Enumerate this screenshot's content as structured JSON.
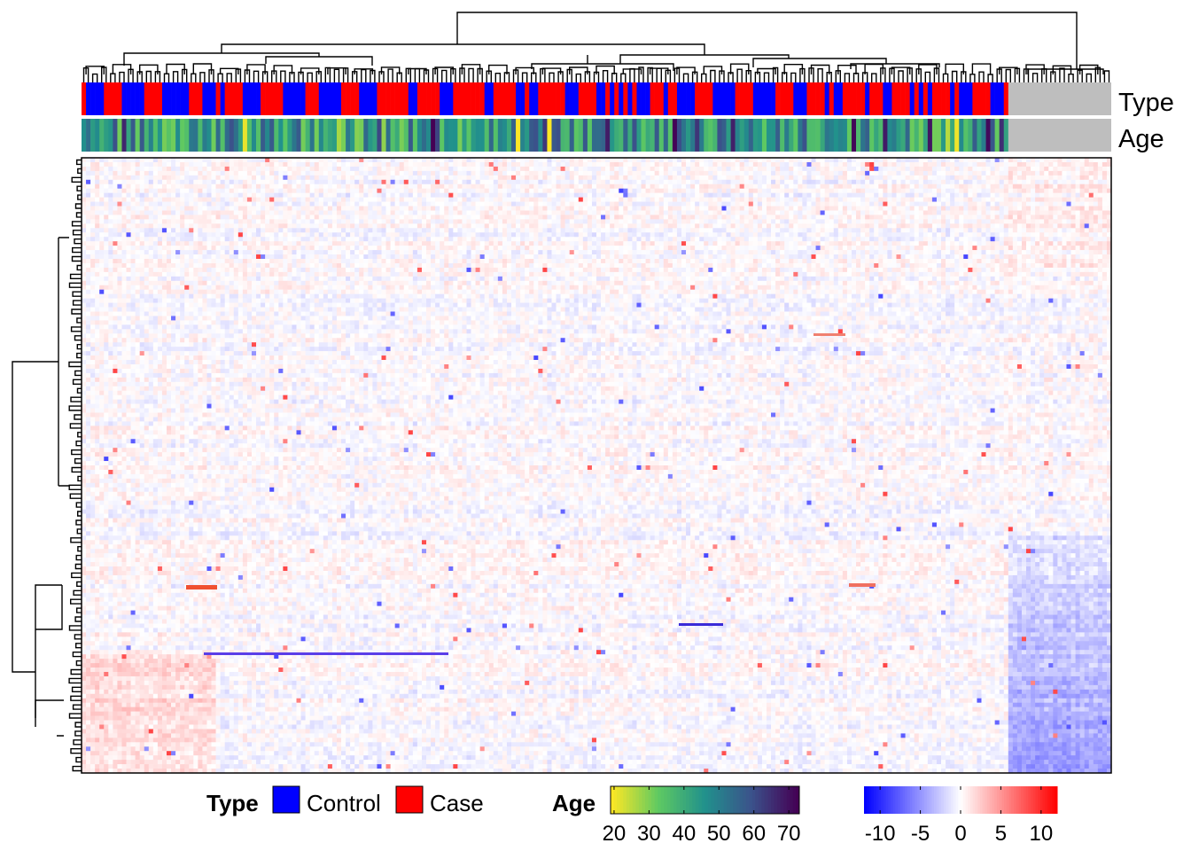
{
  "chart_data": {
    "type": "heatmap",
    "annotation_tracks": [
      {
        "name": "Type",
        "kind": "categorical"
      },
      {
        "name": "Age",
        "kind": "continuous"
      }
    ],
    "column_dendrogram": true,
    "row_dendrogram": true,
    "legends": {
      "type": {
        "title": "Type",
        "entries": [
          {
            "label": "Control",
            "color": "#0000ff"
          },
          {
            "label": "Case",
            "color": "#ff0000"
          }
        ]
      },
      "age": {
        "title": "Age",
        "scale": "viridis-reversed",
        "ticks": [
          "20",
          "30",
          "40",
          "50",
          "60",
          "70"
        ],
        "range": [
          19,
          73
        ]
      },
      "value": {
        "title": "",
        "ticks": [
          "-10",
          "-5",
          "0",
          "5",
          "10"
        ],
        "range": [
          -12,
          12
        ],
        "colors": {
          "low": "#0000ff",
          "mid": "#ffffff",
          "high": "#ff0000"
        }
      }
    },
    "missing_color": "#bebebe",
    "annotation_pattern": {
      "type_sequence": [
        "Control",
        "Case",
        "Control",
        "Case",
        "Control",
        "Case",
        "Control",
        "Case",
        "Control",
        "Case",
        "Control",
        "Case",
        "Control",
        "Case",
        "Control",
        "Case",
        "Control",
        "Case",
        "Control",
        "Case",
        "Control",
        "Case",
        "Control",
        "Case",
        "Control",
        "Case",
        "Control",
        "Case",
        "Control",
        "Case",
        "Control",
        "Case",
        "Control",
        "Case",
        "Control",
        "Case",
        "Control",
        "Case",
        "Control",
        "Case",
        "Control",
        "Case",
        "Control",
        "Case",
        "Control",
        "Case",
        "Control"
      ],
      "no_annotation_columns": 20
    },
    "notable_features": [
      {
        "description": "strong negative band in left column block, lower middle",
        "sign": "negative"
      },
      {
        "description": "positive block in lower-left rows",
        "sign": "positive"
      },
      {
        "description": "negative block in lower-right unannotated columns",
        "sign": "negative"
      }
    ]
  }
}
